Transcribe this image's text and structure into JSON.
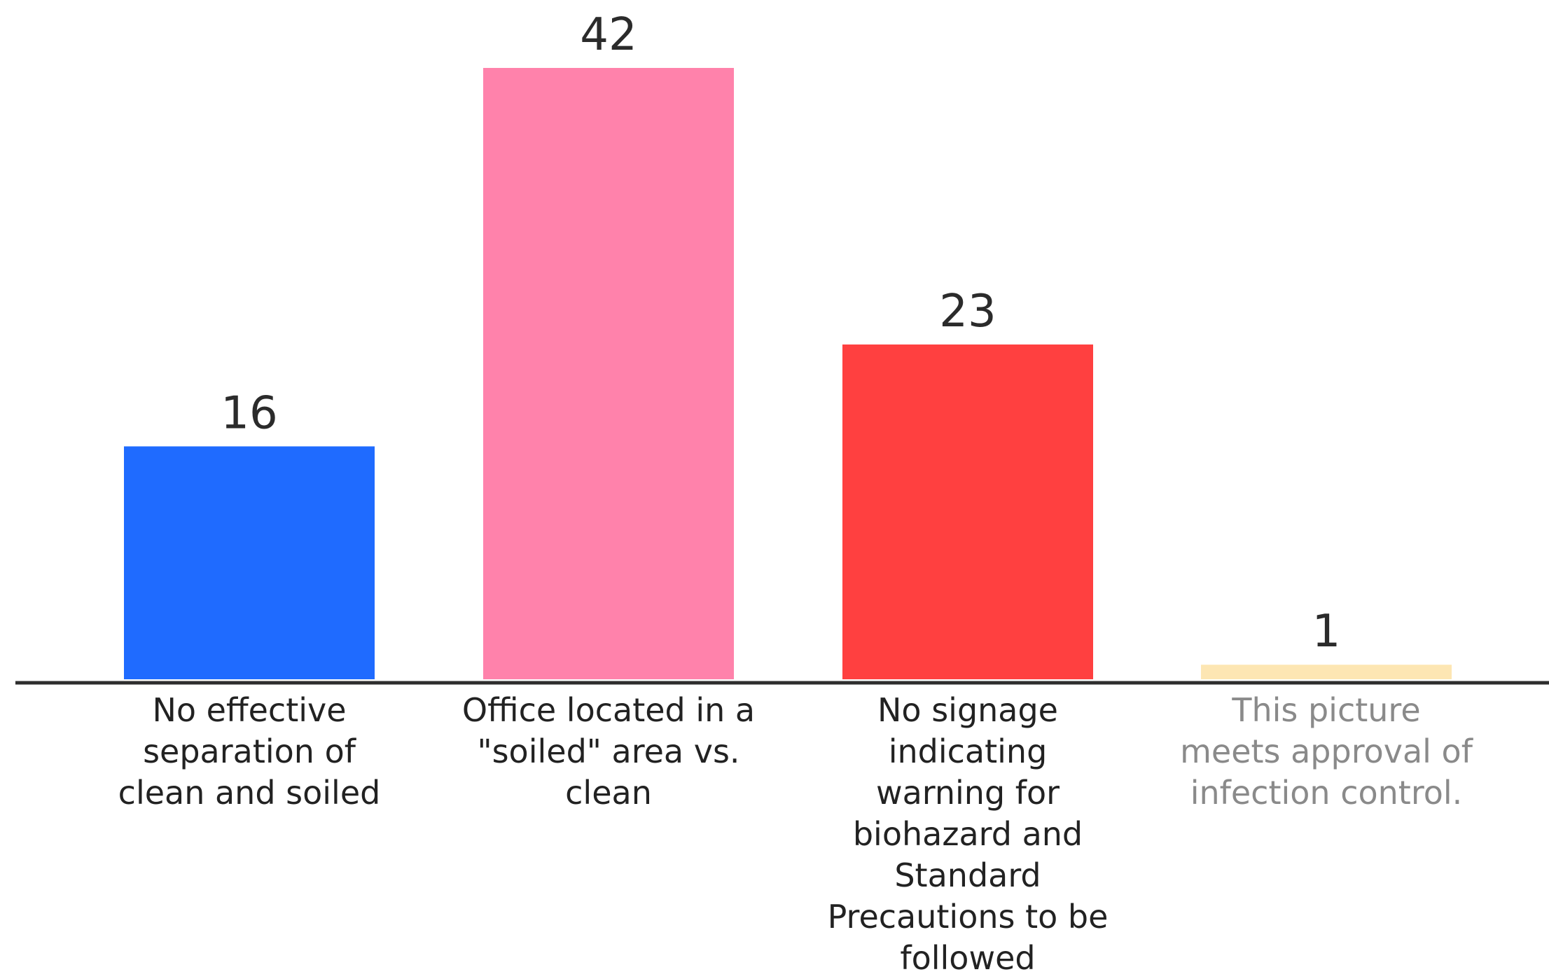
{
  "chart_data": {
    "type": "bar",
    "categories": [
      "No effective separation of clean and soiled",
      "Office located in a \"soiled\" area vs. clean",
      "No signage indicating warning for biohazard and Standard Precautions to be followed",
      "This picture meets approval of infection control."
    ],
    "values": [
      16,
      42,
      23,
      1
    ],
    "colors": [
      "#1f6bff",
      "#ff82ab",
      "#ff4040",
      "#fde6b3"
    ],
    "category_label_colors": [
      "#222222",
      "#222222",
      "#222222",
      "#8a8a8a"
    ],
    "ylim": [
      0,
      42
    ],
    "grid": false,
    "legend": "none",
    "data_labels": true
  }
}
